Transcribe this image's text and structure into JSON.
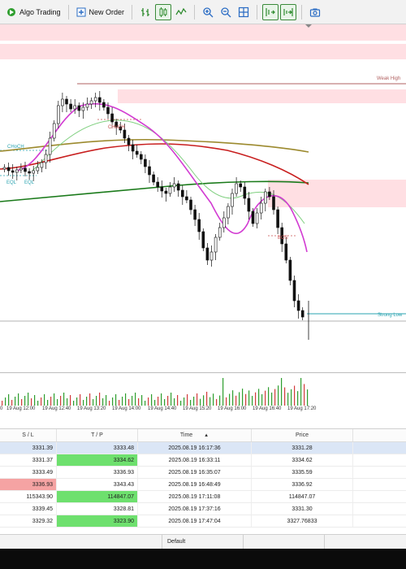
{
  "toolbar": {
    "algo_trading_label": "Algo Trading",
    "new_order_label": "New Order",
    "accent_green": "#2e8b2e",
    "accent_blue": "#2a6cc4"
  },
  "chart": {
    "labels": {
      "weak_high": "Weak High",
      "strong_low": "Strong Low",
      "choch_left": "CHoCH",
      "choch_mid": "CHoCH",
      "eql_1": "EQL",
      "eql_2": "EQL",
      "bos": "BOS"
    },
    "colors": {
      "zone_pink": "#ffdfe3",
      "ma_magenta": "#d23bd2",
      "ma_red": "#c81e1e",
      "ma_olive": "#9c8a2e",
      "ma_green": "#1a7a1a",
      "ma_lightgreen": "#7fcf7f",
      "strong_low_line": "#2aa3b0",
      "weak_high_line": "#b06060"
    }
  },
  "time_axis": {
    "ticks": [
      "0",
      "19 Aug 12:00",
      "19 Aug 12:40",
      "19 Aug 13:20",
      "19 Aug 14:00",
      "19 Aug 14:40",
      "19 Aug 15:20",
      "19 Aug 16:00",
      "19 Aug 16:40",
      "19 Aug 17:20"
    ]
  },
  "table": {
    "headers": {
      "sl": "S / L",
      "tp": "T / P",
      "time": "Time",
      "price": "Price"
    },
    "rows": [
      {
        "sl": "3331.39",
        "tp": "3333.48",
        "time": "2025.08.19 16:17:36",
        "price": "3331.28",
        "sl_hl": "",
        "tp_hl": "",
        "selected": true
      },
      {
        "sl": "3331.37",
        "tp": "3334.62",
        "time": "2025.08.19 16:33:11",
        "price": "3334.62",
        "sl_hl": "",
        "tp_hl": "green",
        "selected": false
      },
      {
        "sl": "3333.49",
        "tp": "3336.93",
        "time": "2025.08.19 16:35:07",
        "price": "3335.59",
        "sl_hl": "",
        "tp_hl": "",
        "selected": false
      },
      {
        "sl": "3336.93",
        "tp": "3343.43",
        "time": "2025.08.19 16:48:49",
        "price": "3336.92",
        "sl_hl": "red",
        "tp_hl": "",
        "selected": false
      },
      {
        "sl": "115343.90",
        "tp": "114847.07",
        "time": "2025.08.19 17:11:08",
        "price": "114847.07",
        "sl_hl": "",
        "tp_hl": "green",
        "selected": false
      },
      {
        "sl": "3339.45",
        "tp": "3328.81",
        "time": "2025.08.19 17:37:16",
        "price": "3331.30",
        "sl_hl": "",
        "tp_hl": "",
        "selected": false
      },
      {
        "sl": "3329.32",
        "tp": "3323.90",
        "time": "2025.08.19 17:47:04",
        "price": "3327.76833",
        "sl_hl": "",
        "tp_hl": "green",
        "selected": false
      }
    ]
  },
  "bottom_bar": {
    "default_label": "Default"
  }
}
